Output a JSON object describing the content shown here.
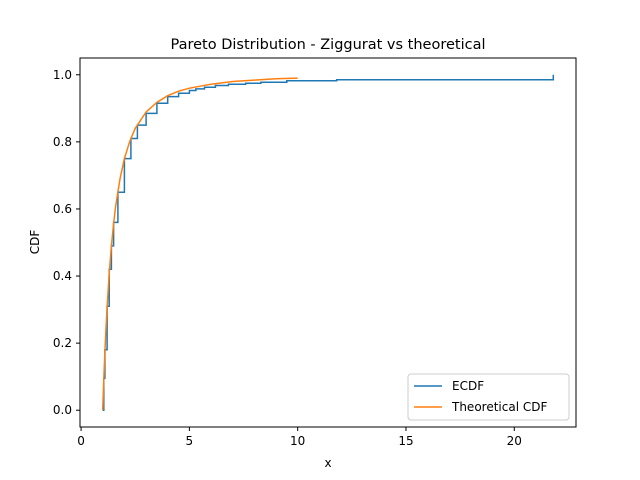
{
  "chart_data": {
    "type": "line",
    "title": "Pareto Distribution - Ziggurat vs theoretical",
    "xlabel": "x",
    "ylabel": "CDF",
    "xlim": [
      -0.05,
      22.85
    ],
    "ylim": [
      -0.05,
      1.05
    ],
    "xticks": [
      0,
      5,
      10,
      15,
      20
    ],
    "yticks": [
      0.0,
      0.2,
      0.4,
      0.6,
      0.8,
      1.0
    ],
    "xtick_labels": [
      "0",
      "5",
      "10",
      "15",
      "20"
    ],
    "ytick_labels": [
      "0.0",
      "0.2",
      "0.4",
      "0.6",
      "0.8",
      "1.0"
    ],
    "grid": false,
    "legend_position": "lower-right",
    "series": [
      {
        "name": "ECDF",
        "color": "#1f77b4",
        "step": true,
        "x": [
          1.0,
          1.05,
          1.1,
          1.2,
          1.3,
          1.4,
          1.5,
          1.7,
          2.0,
          2.3,
          2.6,
          3.0,
          3.5,
          4.0,
          4.5,
          5.0,
          5.3,
          5.7,
          6.2,
          6.8,
          7.6,
          8.3,
          9.5,
          11.8,
          21.8,
          21.8
        ],
        "y": [
          0.0,
          0.095,
          0.18,
          0.31,
          0.42,
          0.49,
          0.56,
          0.65,
          0.75,
          0.81,
          0.85,
          0.885,
          0.915,
          0.935,
          0.945,
          0.953,
          0.958,
          0.963,
          0.968,
          0.972,
          0.975,
          0.978,
          0.982,
          0.985,
          0.985,
          1.0
        ]
      },
      {
        "name": "Theoretical CDF",
        "color": "#ff7f0e",
        "step": false,
        "function": "1 - x^-2",
        "x": [
          1.0,
          1.05,
          1.1,
          1.15,
          1.2,
          1.3,
          1.4,
          1.5,
          1.6,
          1.8,
          2.0,
          2.25,
          2.5,
          3.0,
          3.5,
          4.0,
          4.5,
          5.0,
          6.0,
          7.0,
          8.0,
          9.0,
          10.0
        ],
        "y": [
          0.0,
          0.093,
          0.174,
          0.244,
          0.306,
          0.408,
          0.49,
          0.556,
          0.609,
          0.691,
          0.75,
          0.802,
          0.84,
          0.889,
          0.918,
          0.9375,
          0.951,
          0.96,
          0.972,
          0.98,
          0.984,
          0.988,
          0.99
        ]
      }
    ]
  }
}
